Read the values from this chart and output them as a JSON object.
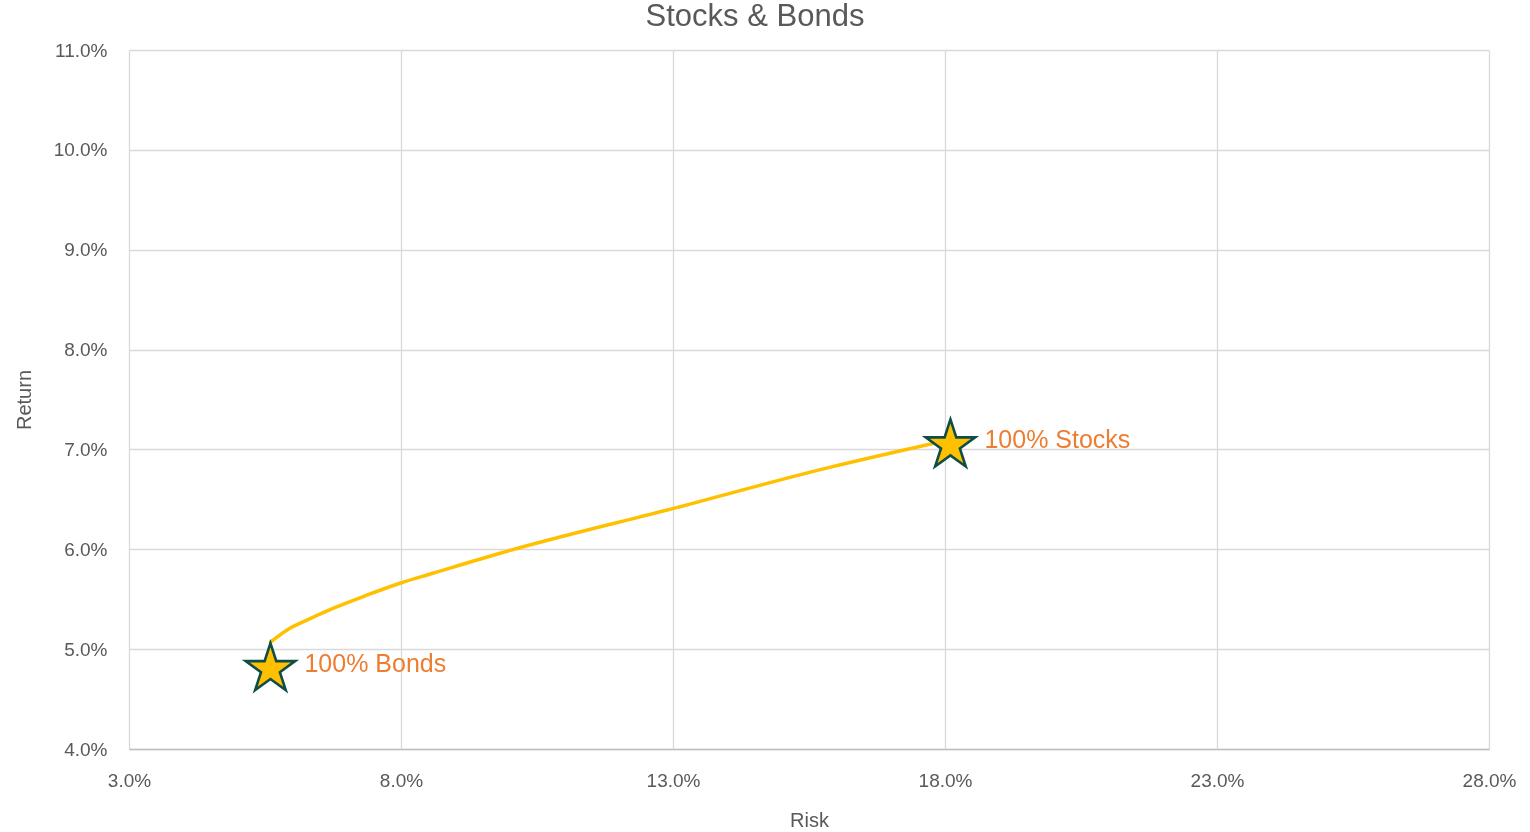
{
  "chart_data": {
    "type": "line",
    "title": "Stocks & Bonds",
    "xlabel": "Risk",
    "ylabel": "Return",
    "xlim": [
      3,
      28
    ],
    "xticks": [
      {
        "value": 3,
        "label": "3.0%"
      },
      {
        "value": 8,
        "label": "8.0%"
      },
      {
        "value": 13,
        "label": "13.0%"
      },
      {
        "value": 18,
        "label": "18.0%"
      },
      {
        "value": 23,
        "label": "23.0%"
      },
      {
        "value": 28,
        "label": "28.0%"
      }
    ],
    "ylim": [
      4,
      11
    ],
    "yticks": [
      {
        "value": 4,
        "label": "4.0%"
      },
      {
        "value": 5,
        "label": "5.0%"
      },
      {
        "value": 6,
        "label": "6.0%"
      },
      {
        "value": 7,
        "label": "7.0%"
      },
      {
        "value": 8,
        "label": "8.0%"
      },
      {
        "value": 9,
        "label": "9.0%"
      },
      {
        "value": 10,
        "label": "10.0%"
      },
      {
        "value": 11,
        "label": "11.0%"
      }
    ],
    "grid": true,
    "series": [
      {
        "color": "#ffc000",
        "x": [
          5.6,
          5.9,
          6.27,
          6.76,
          7.37,
          7.98,
          8.59,
          9.82,
          13.01,
          15.95,
          17.78
        ],
        "values": [
          5.07,
          5.19,
          5.29,
          5.41,
          5.54,
          5.66,
          5.76,
          5.96,
          6.41,
          6.83,
          7.06
        ]
      },
      {
        "type": "scatter",
        "marker": "star",
        "color": "#ffc000",
        "x": [
          5.6,
          18.1
        ],
        "values": [
          4.8,
          7.04
        ]
      }
    ],
    "annotations": [
      {
        "text": "100% Bonds",
        "x": 5.6,
        "y": 4.8
      },
      {
        "text": "100% Stocks",
        "x": 18.1,
        "y": 7.04
      }
    ]
  }
}
